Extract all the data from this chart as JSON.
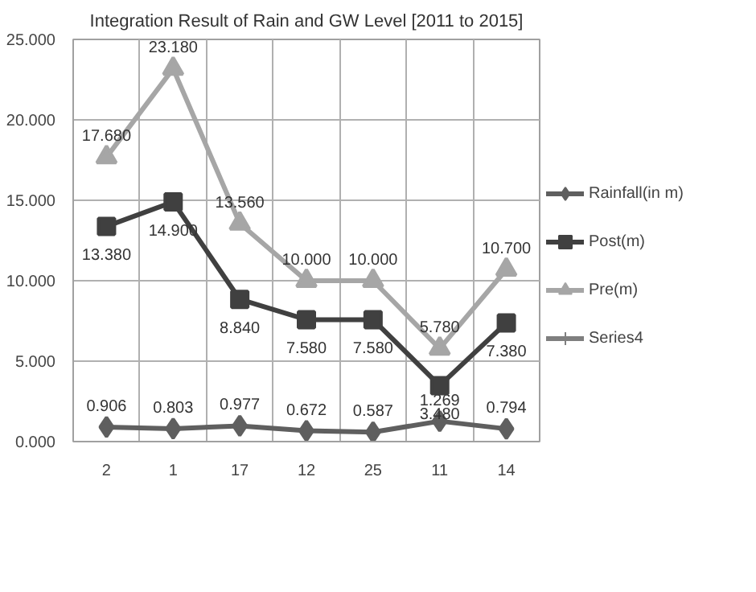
{
  "chart_data": {
    "type": "line",
    "title": "Integration Result of Rain and GW Level [2011 to 2015]",
    "categories": [
      "2",
      "1",
      "17",
      "12",
      "25",
      "11",
      "14"
    ],
    "series": [
      {
        "name": "Rainfall(in m)",
        "color": "#5f5f5f",
        "marker": "diamond",
        "values": [
          0.906,
          0.803,
          0.977,
          0.672,
          0.587,
          1.269,
          0.794
        ],
        "value_labels": [
          "0.906",
          "0.803",
          "0.977",
          "0.672",
          "0.587",
          "1.269",
          "0.794"
        ]
      },
      {
        "name": "Post(m)",
        "color": "#404040",
        "marker": "square",
        "values": [
          13.38,
          14.9,
          8.84,
          7.58,
          7.58,
          3.48,
          7.38
        ],
        "value_labels": [
          "13.380",
          "14.900",
          "8.840",
          "7.580",
          "7.580",
          "3.480",
          "7.380"
        ]
      },
      {
        "name": "Pre(m)",
        "color": "#a6a6a6",
        "marker": "triangle",
        "values": [
          17.68,
          23.18,
          13.56,
          10.0,
          10.0,
          5.78,
          10.7
        ],
        "value_labels": [
          "17.680",
          "23.180",
          "13.560",
          "10.000",
          "10.000",
          "5.780",
          "10.700"
        ]
      },
      {
        "name": "Series4",
        "color": "#7f7f7f",
        "marker": "cross",
        "values": [
          null,
          null,
          null,
          null,
          null,
          null,
          null
        ]
      }
    ],
    "ylim": [
      0,
      25
    ],
    "yticks": [
      {
        "value": 0,
        "label": "0.000"
      },
      {
        "value": 5,
        "label": "5.000"
      },
      {
        "value": 10,
        "label": "10.000"
      },
      {
        "value": 15,
        "label": "15.000"
      },
      {
        "value": 20,
        "label": "20.000"
      },
      {
        "value": 25,
        "label": "25.000"
      }
    ],
    "grid": true,
    "legend": "right"
  }
}
